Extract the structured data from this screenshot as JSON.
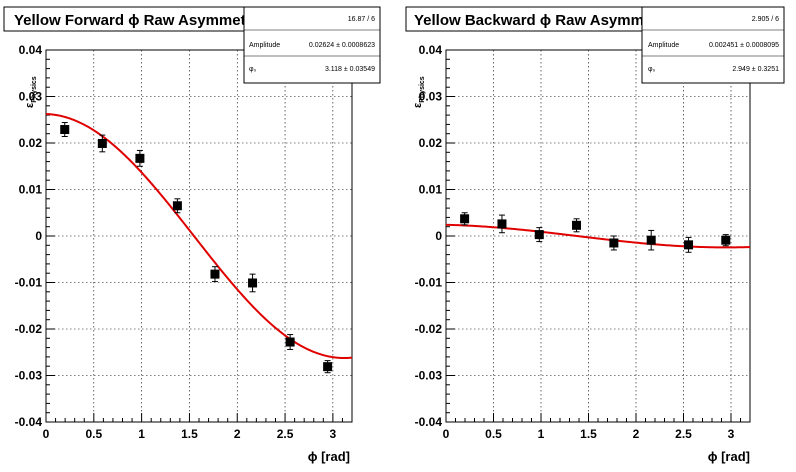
{
  "chart_data": [
    {
      "type": "scatter",
      "title": "Yellow Forward ϕ Raw Asymmetry",
      "xlabel": "ϕ [rad]",
      "ylabel_symbol": "ε",
      "ylabel_sub": "Physics",
      "xlim": [
        0,
        3.2
      ],
      "ylim": [
        -0.04,
        0.04
      ],
      "xticks": [
        0,
        0.5,
        1,
        1.5,
        2,
        2.5,
        3
      ],
      "xtick_labels": [
        "0",
        "0.5",
        "1",
        "1.5",
        "2",
        "2.5",
        "3"
      ],
      "yticks": [
        -0.04,
        -0.03,
        -0.02,
        -0.01,
        0,
        0.01,
        0.02,
        0.03,
        0.04
      ],
      "ytick_labels": [
        "-0.04",
        "-0.03",
        "-0.02",
        "-0.01",
        "0",
        "0.01",
        "0.02",
        "0.03",
        "0.04"
      ],
      "grid": true,
      "stats": {
        "chi2_ndf": "16.87 / 6",
        "rows": [
          {
            "name": "Amplitude",
            "value": "0.02624 ± 0.0008623"
          },
          {
            "name": "φ₀",
            "value": "3.118 ± 0.03549"
          }
        ]
      },
      "fit": {
        "function": "-A*cos(x - phi0)",
        "amplitude": 0.02624,
        "phi0": 3.118,
        "color": "#e00000"
      },
      "points": [
        {
          "x": 0.196,
          "y": 0.0229,
          "err": 0.0015
        },
        {
          "x": 0.589,
          "y": 0.0199,
          "err": 0.0018
        },
        {
          "x": 0.982,
          "y": 0.0167,
          "err": 0.0017
        },
        {
          "x": 1.374,
          "y": 0.0065,
          "err": 0.0015
        },
        {
          "x": 1.767,
          "y": -0.0082,
          "err": 0.0016
        },
        {
          "x": 2.16,
          "y": -0.0101,
          "err": 0.0019
        },
        {
          "x": 2.553,
          "y": -0.0228,
          "err": 0.0016
        },
        {
          "x": 2.945,
          "y": -0.0281,
          "err": 0.0013
        }
      ]
    },
    {
      "type": "scatter",
      "title": "Yellow Backward ϕ Raw Asymmetry",
      "xlabel": "ϕ [rad]",
      "ylabel_symbol": "ε",
      "ylabel_sub": "Physics",
      "xlim": [
        0,
        3.2
      ],
      "ylim": [
        -0.04,
        0.04
      ],
      "xticks": [
        0,
        0.5,
        1,
        1.5,
        2,
        2.5,
        3
      ],
      "xtick_labels": [
        "0",
        "0.5",
        "1",
        "1.5",
        "2",
        "2.5",
        "3"
      ],
      "yticks": [
        -0.04,
        -0.03,
        -0.02,
        -0.01,
        0,
        0.01,
        0.02,
        0.03,
        0.04
      ],
      "ytick_labels": [
        "-0.04",
        "-0.03",
        "-0.02",
        "-0.01",
        "0",
        "0.01",
        "0.02",
        "0.03",
        "0.04"
      ],
      "grid": true,
      "stats": {
        "chi2_ndf": "2.905 / 6",
        "rows": [
          {
            "name": "Amplitude",
            "value": "0.002451 ± 0.0008095"
          },
          {
            "name": "φ₀",
            "value": "2.949 ± 0.3251"
          }
        ]
      },
      "fit": {
        "function": "-A*cos(x - phi0)",
        "amplitude": 0.002451,
        "phi0": 2.949,
        "color": "#e00000"
      },
      "points": [
        {
          "x": 0.196,
          "y": 0.0037,
          "err": 0.0013
        },
        {
          "x": 0.589,
          "y": 0.0026,
          "err": 0.0019
        },
        {
          "x": 0.982,
          "y": 0.0003,
          "err": 0.0015
        },
        {
          "x": 1.374,
          "y": 0.0023,
          "err": 0.0014
        },
        {
          "x": 1.767,
          "y": -0.0015,
          "err": 0.0015
        },
        {
          "x": 2.16,
          "y": -0.0009,
          "err": 0.0021
        },
        {
          "x": 2.553,
          "y": -0.0019,
          "err": 0.0016
        },
        {
          "x": 2.945,
          "y": -0.0009,
          "err": 0.0012
        }
      ]
    }
  ]
}
